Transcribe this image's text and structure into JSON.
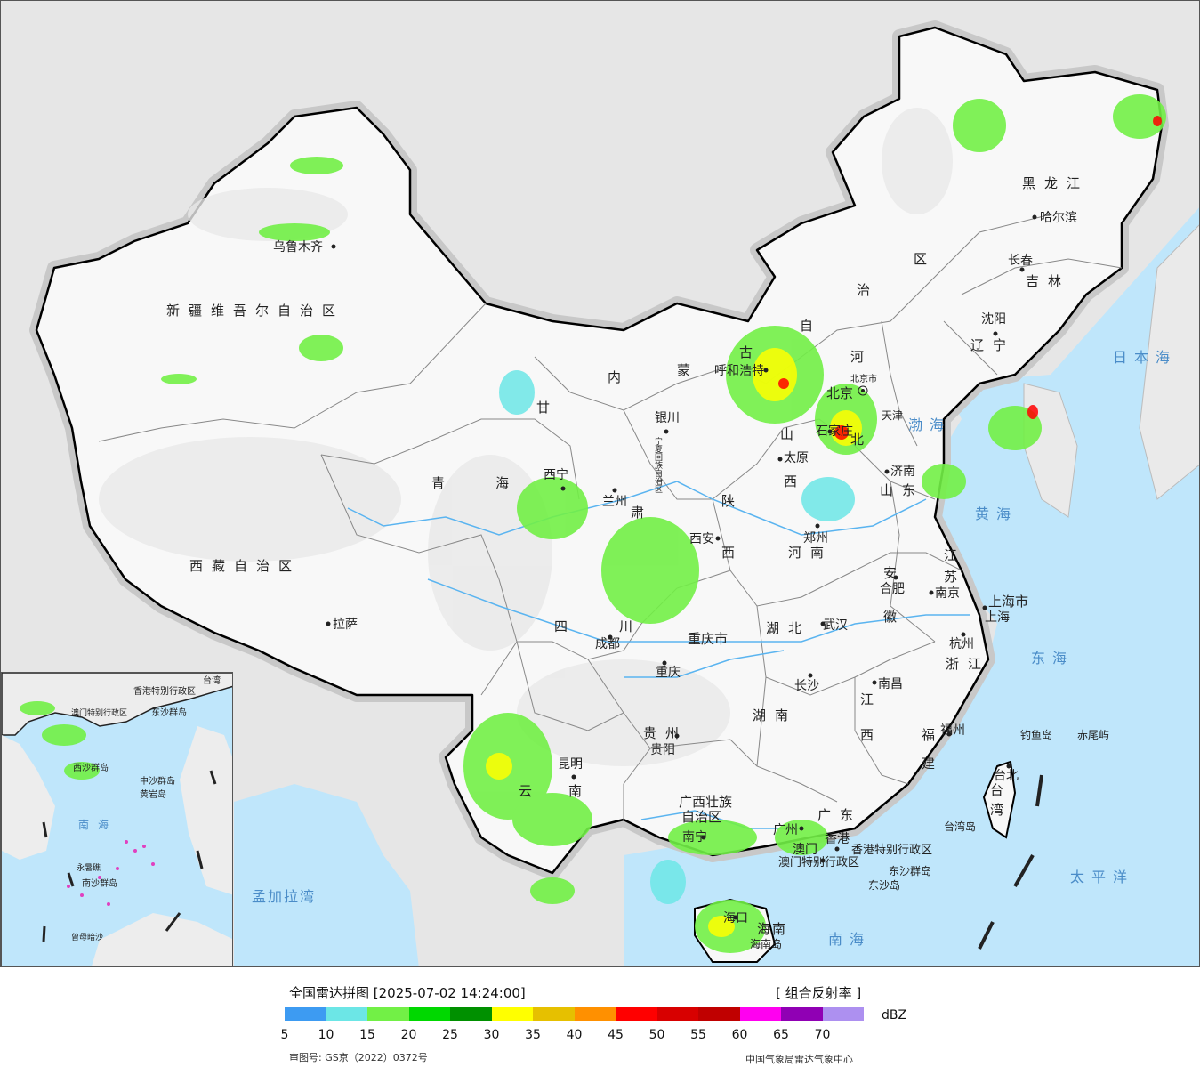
{
  "map": {
    "provinces": [
      {
        "id": "xinjiang",
        "text": "新疆维吾尔自治区"
      },
      {
        "id": "xizang",
        "text": "西藏自治区"
      },
      {
        "id": "qinghai-1",
        "text": "青"
      },
      {
        "id": "qinghai-2",
        "text": "海"
      },
      {
        "id": "gansu",
        "text": "甘"
      },
      {
        "id": "gansu-2",
        "text": "肃"
      },
      {
        "id": "neimenggu-1",
        "text": "内"
      },
      {
        "id": "neimenggu-2",
        "text": "蒙"
      },
      {
        "id": "neimenggu-3",
        "text": "古"
      },
      {
        "id": "neimenggu-4",
        "text": "自"
      },
      {
        "id": "neimenggu-5",
        "text": "治"
      },
      {
        "id": "neimenggu-6",
        "text": "区"
      },
      {
        "id": "heilongjiang",
        "text": "黑龙江"
      },
      {
        "id": "jilin",
        "text": "吉林"
      },
      {
        "id": "liaoning",
        "text": "辽宁"
      },
      {
        "id": "hebei-1",
        "text": "河"
      },
      {
        "id": "hebei-2",
        "text": "北"
      },
      {
        "id": "shanxi-1",
        "text": "山"
      },
      {
        "id": "shanxi-2",
        "text": "西"
      },
      {
        "id": "shandong",
        "text": "山东"
      },
      {
        "id": "shaanxi-1",
        "text": "陕"
      },
      {
        "id": "shaanxi-2",
        "text": "西"
      },
      {
        "id": "henan",
        "text": "河南"
      },
      {
        "id": "jiangsu-1",
        "text": "江"
      },
      {
        "id": "jiangsu-2",
        "text": "苏"
      },
      {
        "id": "anhui-1",
        "text": "安"
      },
      {
        "id": "anhui-2",
        "text": "徽"
      },
      {
        "id": "sichuan-1",
        "text": "四"
      },
      {
        "id": "sichuan-2",
        "text": "川"
      },
      {
        "id": "hubei",
        "text": "湖北"
      },
      {
        "id": "chongqing",
        "text": "重庆市"
      },
      {
        "id": "zhejiang",
        "text": "浙江"
      },
      {
        "id": "hunan",
        "text": "湖南"
      },
      {
        "id": "jiangxi-1",
        "text": "江"
      },
      {
        "id": "jiangxi-2",
        "text": "西"
      },
      {
        "id": "guizhou",
        "text": "贵州"
      },
      {
        "id": "yunnan-1",
        "text": "云"
      },
      {
        "id": "yunnan-2",
        "text": "南"
      },
      {
        "id": "fujian-1",
        "text": "福"
      },
      {
        "id": "fujian-2",
        "text": "建"
      },
      {
        "id": "guangxi-1",
        "text": "广西壮族"
      },
      {
        "id": "guangxi-2",
        "text": "自治区"
      },
      {
        "id": "guangdong",
        "text": "广东"
      },
      {
        "id": "hainan",
        "text": "海南"
      },
      {
        "id": "taiwan-1",
        "text": "台"
      },
      {
        "id": "taiwan-2",
        "text": "湾"
      },
      {
        "id": "shanghai",
        "text": "上海市"
      },
      {
        "id": "ningxia",
        "text": "宁夏回族自治区"
      },
      {
        "id": "tianjin",
        "text": "天津"
      },
      {
        "id": "beijing",
        "text": "北京"
      }
    ],
    "cities": [
      {
        "id": "urumqi",
        "text": "乌鲁木齐"
      },
      {
        "id": "lhasa",
        "text": "拉萨"
      },
      {
        "id": "xining",
        "text": "西宁"
      },
      {
        "id": "lanzhou",
        "text": "兰州"
      },
      {
        "id": "yinchuan",
        "text": "银川"
      },
      {
        "id": "hohhot",
        "text": "呼和浩特"
      },
      {
        "id": "beijing-city",
        "text": "北京市"
      },
      {
        "id": "shijiazhuang",
        "text": "石家庄"
      },
      {
        "id": "taiyuan",
        "text": "太原"
      },
      {
        "id": "jinan",
        "text": "济南"
      },
      {
        "id": "xian",
        "text": "西安"
      },
      {
        "id": "zhengzhou",
        "text": "郑州"
      },
      {
        "id": "hefei",
        "text": "合肥"
      },
      {
        "id": "nanjing",
        "text": "南京"
      },
      {
        "id": "shanghai-city",
        "text": "上海"
      },
      {
        "id": "hangzhou",
        "text": "杭州"
      },
      {
        "id": "wuhan",
        "text": "武汉"
      },
      {
        "id": "chengdu",
        "text": "成都"
      },
      {
        "id": "chongqing-city",
        "text": "重庆"
      },
      {
        "id": "changsha",
        "text": "长沙"
      },
      {
        "id": "nanchang",
        "text": "南昌"
      },
      {
        "id": "guiyang",
        "text": "贵阳"
      },
      {
        "id": "kunming",
        "text": "昆明"
      },
      {
        "id": "fuzhou",
        "text": "福州"
      },
      {
        "id": "nanning",
        "text": "南宁"
      },
      {
        "id": "guangzhou",
        "text": "广州"
      },
      {
        "id": "hongkong",
        "text": "香港"
      },
      {
        "id": "macau",
        "text": "澳门"
      },
      {
        "id": "haikou",
        "text": "海口"
      },
      {
        "id": "taipei",
        "text": "台北"
      },
      {
        "id": "shenyang",
        "text": "沈阳"
      },
      {
        "id": "changchun",
        "text": "长春"
      },
      {
        "id": "harbin",
        "text": "哈尔滨"
      }
    ],
    "seas": [
      {
        "id": "riben-hai",
        "text": "日本海"
      },
      {
        "id": "bo-hai",
        "text": "渤海"
      },
      {
        "id": "huang-hai",
        "text": "黄海"
      },
      {
        "id": "dong-hai",
        "text": "东海"
      },
      {
        "id": "taiping-yang",
        "text": "太平洋"
      },
      {
        "id": "nan-hai",
        "text": "南海"
      },
      {
        "id": "mengjiala-wan",
        "text": "孟加拉湾"
      }
    ],
    "islands": [
      {
        "id": "diaoyu",
        "text": "钓鱼岛"
      },
      {
        "id": "chiwei",
        "text": "赤尾屿"
      },
      {
        "id": "taiwan-dao",
        "text": "台湾岛"
      },
      {
        "id": "hainan-dao",
        "text": "海南岛"
      },
      {
        "id": "dongsha-qundao",
        "text": "东沙群岛"
      },
      {
        "id": "dongsha-dao",
        "text": "东沙岛"
      },
      {
        "id": "hk-sar",
        "text": "香港特别行政区"
      },
      {
        "id": "macau-sar",
        "text": "澳门特别行政区"
      }
    ],
    "inset": {
      "labels": [
        {
          "id": "inset-hk",
          "text": "香港特别行政区"
        },
        {
          "id": "inset-dongsha",
          "text": "东沙群岛"
        },
        {
          "id": "inset-xisha",
          "text": "西沙群岛"
        },
        {
          "id": "inset-zhongsha",
          "text": "中沙群岛"
        },
        {
          "id": "inset-huangyan",
          "text": "黄岩岛"
        },
        {
          "id": "inset-nanhai",
          "text": "南海"
        },
        {
          "id": "inset-nansha",
          "text": "南沙群岛"
        },
        {
          "id": "inset-yongshu",
          "text": "永暑礁"
        },
        {
          "id": "inset-zengmu",
          "text": "曾母暗沙"
        },
        {
          "id": "inset-taiwan",
          "text": "台湾"
        },
        {
          "id": "inset-macau",
          "text": "澳门特别行政区"
        }
      ]
    }
  },
  "legend": {
    "title": "全国雷达拼图 [2025-07-02 14:24:00]",
    "product": "[ 组合反射率 ]",
    "unit": "dBZ",
    "colors": [
      "#3d9bf2",
      "#6ce6e6",
      "#72f046",
      "#00d800",
      "#009000",
      "#ffff00",
      "#e6c000",
      "#ff9000",
      "#ff0000",
      "#d80000",
      "#c00000",
      "#ff00f0",
      "#9000b4",
      "#ad90f0"
    ],
    "ticks": [
      "5",
      "10",
      "15",
      "20",
      "25",
      "30",
      "35",
      "40",
      "45",
      "50",
      "55",
      "60",
      "65",
      "70"
    ],
    "approval": "审图号: GS京（2022）0372号",
    "source": "中国气象局雷达气象中心"
  }
}
